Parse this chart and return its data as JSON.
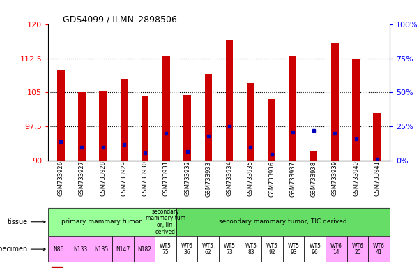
{
  "title": "GDS4099 / ILMN_2898506",
  "samples": [
    "GSM733926",
    "GSM733927",
    "GSM733928",
    "GSM733929",
    "GSM733930",
    "GSM733931",
    "GSM733932",
    "GSM733933",
    "GSM733934",
    "GSM733935",
    "GSM733936",
    "GSM733937",
    "GSM733938",
    "GSM733939",
    "GSM733940",
    "GSM733941"
  ],
  "count_values": [
    110.0,
    105.0,
    105.2,
    108.0,
    104.2,
    113.0,
    104.5,
    109.0,
    116.5,
    107.0,
    103.5,
    113.0,
    92.0,
    116.0,
    112.5,
    100.5
  ],
  "percentile_values": [
    14,
    10,
    10,
    12,
    6,
    20,
    7,
    18,
    25,
    10,
    5,
    21,
    22,
    20,
    16,
    1
  ],
  "ymin": 90,
  "ymax": 120,
  "yticks": [
    90,
    97.5,
    105,
    112.5,
    120
  ],
  "ytick_labels_left": [
    "90",
    "97.5",
    "105",
    "112.5",
    "120"
  ],
  "ytick_labels_right": [
    "0%",
    "25%",
    "50%",
    "75%",
    "100%"
  ],
  "bar_color": "#cc0000",
  "percentile_color": "#0000bb",
  "groups": [
    {
      "label": "primary mammary tumor",
      "start": 0,
      "end": 5,
      "color": "#99ff99"
    },
    {
      "label": "secondary\nmammary tum\nor, lin-\nderived",
      "start": 5,
      "end": 6,
      "color": "#99ff99"
    },
    {
      "label": "secondary mammary tumor, TIC derived",
      "start": 6,
      "end": 16,
      "color": "#66dd66"
    }
  ],
  "specimen_labels": [
    "N86",
    "N133",
    "N135",
    "N147",
    "N182",
    "WT5\n75",
    "WT6\n36",
    "WT5\n62",
    "WT5\n73",
    "WT5\n83",
    "WT5\n92",
    "WT5\n93",
    "WT5\n96",
    "WT6\n14",
    "WT6\n20",
    "WT6\n41"
  ],
  "specimen_colors": [
    "#ffaaff",
    "#ffaaff",
    "#ffaaff",
    "#ffaaff",
    "#ffaaff",
    "#ffffff",
    "#ffffff",
    "#ffffff",
    "#ffffff",
    "#ffffff",
    "#ffffff",
    "#ffffff",
    "#ffffff",
    "#ffaaff",
    "#ffaaff",
    "#ffaaff"
  ],
  "figure_bg": "#ffffff",
  "bar_width": 0.35
}
